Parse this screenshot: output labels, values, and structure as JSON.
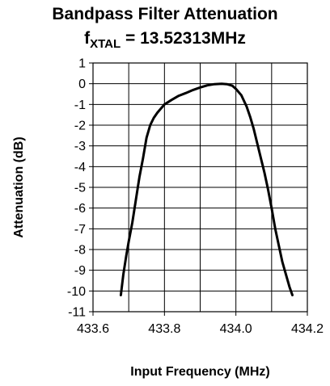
{
  "chart_data": {
    "type": "line",
    "title_line1": "Bandpass Filter Attenuation",
    "title_line2": {
      "prefix": "f",
      "subscript": "XTAL",
      "suffix": " = 13.52313MHz"
    },
    "xlabel": "Input Frequency (MHz)",
    "ylabel": "Attenuation (dB)",
    "xlim": [
      433.6,
      434.2
    ],
    "ylim": [
      -11,
      1
    ],
    "xticks": [
      "433.6",
      "433.8",
      "434.0",
      "434.2"
    ],
    "yticks": [
      "1",
      "0",
      "-1",
      "-2",
      "-3",
      "-4",
      "-5",
      "-6",
      "-7",
      "-8",
      "-9",
      "-10",
      "-11"
    ],
    "grid": true,
    "series": [
      {
        "color": "#000000",
        "x": [
          433.678,
          433.685,
          433.693,
          433.7,
          433.71,
          433.72,
          433.73,
          433.74,
          433.75,
          433.76,
          433.77,
          433.78,
          433.8,
          433.82,
          433.84,
          433.86,
          433.88,
          433.9,
          433.92,
          433.94,
          433.96,
          433.975,
          433.99,
          434.0,
          434.015,
          434.03,
          434.04,
          434.05,
          434.06,
          434.07,
          434.08,
          434.09,
          434.1,
          434.11,
          434.12,
          434.13,
          434.14,
          434.15,
          434.158
        ],
        "y": [
          -10.2,
          -9.2,
          -8.3,
          -7.6,
          -6.7,
          -5.6,
          -4.5,
          -3.6,
          -2.6,
          -2.0,
          -1.65,
          -1.4,
          -1.0,
          -0.78,
          -0.58,
          -0.45,
          -0.3,
          -0.18,
          -0.08,
          -0.02,
          0.0,
          -0.02,
          -0.1,
          -0.25,
          -0.55,
          -1.1,
          -1.6,
          -2.2,
          -2.9,
          -3.6,
          -4.3,
          -5.1,
          -6.0,
          -7.0,
          -7.8,
          -8.6,
          -9.2,
          -9.8,
          -10.2
        ]
      }
    ]
  }
}
